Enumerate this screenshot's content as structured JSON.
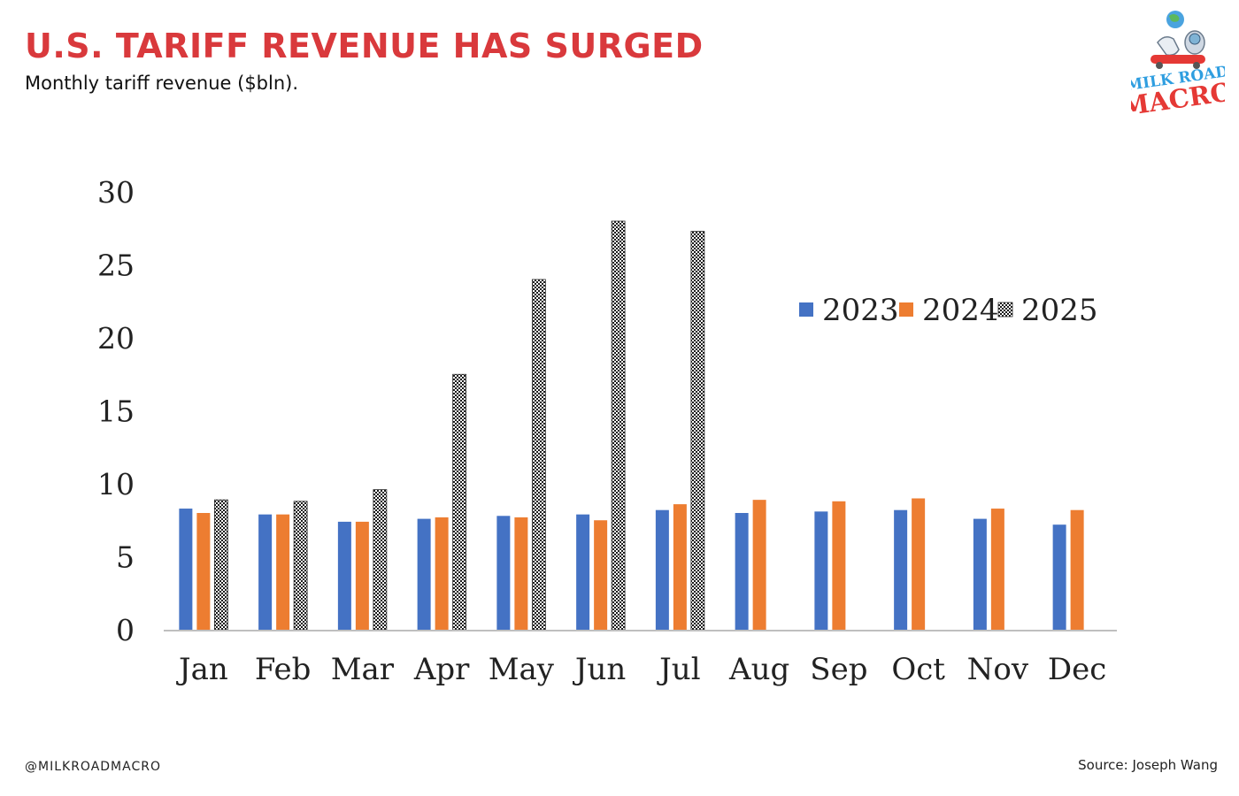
{
  "header": {
    "title": "U.S. TARIFF REVENUE HAS SURGED",
    "subtitle": "Monthly tariff revenue ($bln)."
  },
  "logo": {
    "line1": "MILK ROAD",
    "line2": "MACRO",
    "icon": "astronaut-cow-globe-logo"
  },
  "footer": {
    "handle": "@MILKROADMACRO",
    "source": "Source: Joseph Wang"
  },
  "colors": {
    "title": "#d9393c",
    "s2023": "#4472c4",
    "s2024": "#ed7d31",
    "s2025": "#2a2a2a",
    "axis": "#bfbfbf"
  },
  "chart_data": {
    "type": "bar",
    "categories": [
      "Jan",
      "Feb",
      "Mar",
      "Apr",
      "May",
      "Jun",
      "Jul",
      "Aug",
      "Sep",
      "Oct",
      "Nov",
      "Dec"
    ],
    "series": [
      {
        "name": "2023",
        "values": [
          8.3,
          7.9,
          7.4,
          7.6,
          7.8,
          7.9,
          8.2,
          8.0,
          8.1,
          8.2,
          7.6,
          7.2
        ]
      },
      {
        "name": "2024",
        "values": [
          8.0,
          7.9,
          7.4,
          7.7,
          7.7,
          7.5,
          8.6,
          8.9,
          8.8,
          9.0,
          8.3,
          8.2
        ]
      },
      {
        "name": "2025",
        "values": [
          8.9,
          8.8,
          9.6,
          17.5,
          24.0,
          28.0,
          27.3,
          null,
          null,
          null,
          null,
          null
        ]
      }
    ],
    "yticks": [
      0,
      5,
      10,
      15,
      20,
      25,
      30
    ],
    "ylim": [
      0,
      30
    ],
    "legend": "top-right",
    "grid": false
  }
}
